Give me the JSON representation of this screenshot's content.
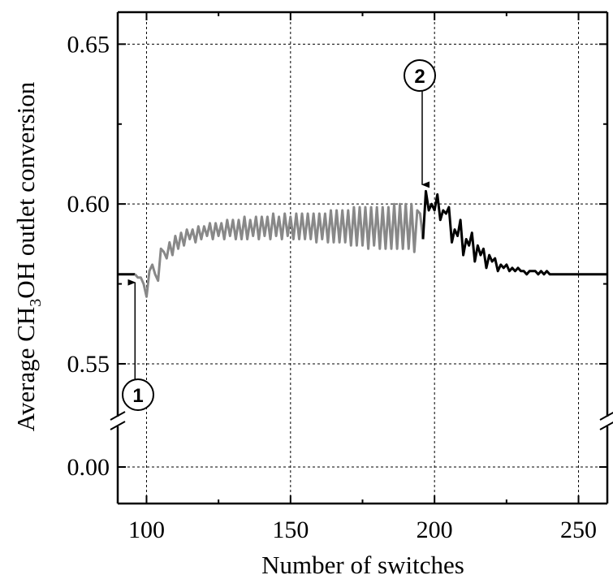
{
  "chart_data": {
    "type": "line",
    "title": "",
    "xlabel": "Number of switches",
    "ylabel": {
      "prefix": "Average CH",
      "sub": "3",
      "suffix": "OH outlet conversion"
    },
    "xlim": [
      90,
      260
    ],
    "x_ticks": [
      100,
      150,
      200,
      250
    ],
    "x_tick_labels": [
      "100",
      "150",
      "200",
      "250"
    ],
    "y_upper_range": [
      0.535,
      0.66
    ],
    "y_lower_range": [
      -0.01,
      0.01
    ],
    "y_ticks": [
      0.55,
      0.6,
      0.65
    ],
    "y_tick_labels": [
      "0.55",
      "0.60",
      "0.65"
    ],
    "y_lower_ticks": [
      0.0
    ],
    "y_lower_tick_labels": [
      "0.00"
    ],
    "axis_break": true,
    "grid": true,
    "series": [
      {
        "color": "#000000",
        "x": [
          90,
          91,
          92,
          93,
          94,
          95,
          96
        ],
        "y": [
          0.578,
          0.578,
          0.578,
          0.578,
          0.578,
          0.578,
          0.578
        ]
      },
      {
        "color": "#888888",
        "x": [
          96,
          97,
          98,
          99,
          100,
          101,
          102,
          103,
          104,
          105,
          106,
          107,
          108,
          109,
          110,
          111,
          112,
          113,
          114,
          115,
          116,
          117,
          118,
          119,
          120,
          121,
          122,
          123,
          124,
          125,
          126,
          127,
          128,
          129,
          130,
          131,
          132,
          133,
          134,
          135,
          136,
          137,
          138,
          139,
          140,
          141,
          142,
          143,
          144,
          145,
          146,
          147,
          148,
          149,
          150,
          151,
          152,
          153,
          154,
          155,
          156,
          157,
          158,
          159,
          160,
          161,
          162,
          163,
          164,
          165,
          166,
          167,
          168,
          169,
          170,
          171,
          172,
          173,
          174,
          175,
          176,
          177,
          178,
          179,
          180,
          181,
          182,
          183,
          184,
          185,
          186,
          187,
          188,
          189,
          190,
          191,
          192,
          193,
          194,
          195,
          196
        ],
        "y": [
          0.578,
          0.577,
          0.577,
          0.575,
          0.571,
          0.579,
          0.581,
          0.578,
          0.576,
          0.586,
          0.585,
          0.583,
          0.588,
          0.584,
          0.59,
          0.586,
          0.591,
          0.587,
          0.592,
          0.589,
          0.592,
          0.588,
          0.593,
          0.589,
          0.593,
          0.59,
          0.594,
          0.589,
          0.594,
          0.59,
          0.594,
          0.589,
          0.595,
          0.59,
          0.595,
          0.589,
          0.595,
          0.589,
          0.596,
          0.589,
          0.595,
          0.59,
          0.596,
          0.589,
          0.596,
          0.59,
          0.596,
          0.589,
          0.597,
          0.59,
          0.596,
          0.589,
          0.597,
          0.59,
          0.596,
          0.589,
          0.597,
          0.589,
          0.597,
          0.589,
          0.597,
          0.589,
          0.597,
          0.588,
          0.597,
          0.589,
          0.597,
          0.588,
          0.598,
          0.588,
          0.598,
          0.588,
          0.598,
          0.588,
          0.598,
          0.587,
          0.599,
          0.587,
          0.599,
          0.587,
          0.599,
          0.586,
          0.599,
          0.587,
          0.599,
          0.586,
          0.599,
          0.586,
          0.599,
          0.586,
          0.6,
          0.586,
          0.6,
          0.586,
          0.6,
          0.586,
          0.6,
          0.585,
          0.598,
          0.597,
          0.589
        ]
      },
      {
        "color": "#000000",
        "x": [
          196,
          197,
          198,
          199,
          200,
          201,
          202,
          203,
          204,
          205,
          206,
          207,
          208,
          209,
          210,
          211,
          212,
          213,
          214,
          215,
          216,
          217,
          218,
          219,
          220,
          221,
          222,
          223,
          224,
          225,
          226,
          227,
          228,
          229,
          230,
          231,
          232,
          233,
          234,
          235,
          236,
          237,
          238,
          239,
          240,
          241,
          242,
          243,
          244,
          245,
          246,
          247,
          248,
          249,
          250,
          251,
          252,
          253,
          254,
          255,
          256,
          257,
          258,
          259,
          260
        ],
        "y": [
          0.589,
          0.604,
          0.598,
          0.6,
          0.598,
          0.603,
          0.595,
          0.598,
          0.597,
          0.599,
          0.588,
          0.592,
          0.59,
          0.595,
          0.584,
          0.589,
          0.587,
          0.591,
          0.582,
          0.587,
          0.584,
          0.586,
          0.58,
          0.584,
          0.582,
          0.583,
          0.579,
          0.581,
          0.58,
          0.581,
          0.579,
          0.58,
          0.579,
          0.58,
          0.579,
          0.579,
          0.578,
          0.579,
          0.579,
          0.579,
          0.578,
          0.579,
          0.578,
          0.579,
          0.578,
          0.578,
          0.578,
          0.578,
          0.578,
          0.578,
          0.578,
          0.578,
          0.578,
          0.578,
          0.578,
          0.578,
          0.578,
          0.578,
          0.578,
          0.578,
          0.578,
          0.578,
          0.578,
          0.578,
          0.578
        ]
      }
    ],
    "annotations": [
      {
        "label": "1",
        "x": 96
      },
      {
        "label": "2",
        "x": 196
      }
    ]
  }
}
